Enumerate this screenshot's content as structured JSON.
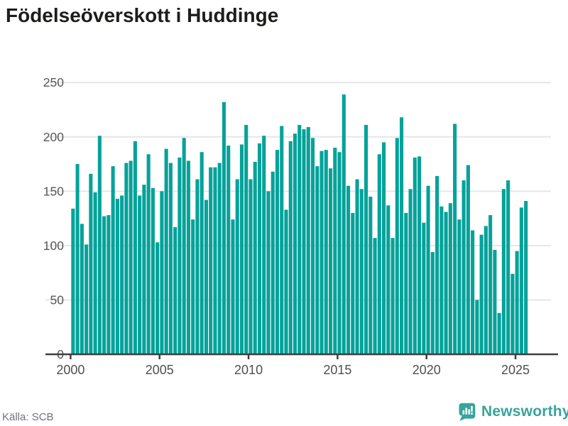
{
  "title": "Födelseöverskott i Huddinge",
  "source": "Källa: SCB",
  "logo": {
    "text": "Newsworthy"
  },
  "colors": {
    "bar": "#05a29a",
    "grid": "#e6e6e9",
    "axis": "#3f3f41",
    "y_label": "#58585a",
    "x_label": "#4f4f51",
    "title": "#1d1d1b",
    "source_text": "#6f737b",
    "logo_teal": "#38a49c"
  },
  "chart_data": {
    "type": "bar",
    "title": "Födelseöverskott i Huddinge",
    "xlabel": "",
    "ylabel": "",
    "frequency": "quarterly",
    "start": {
      "year": 2000,
      "quarter": 1
    },
    "count": 103,
    "series": [
      {
        "name": "Födelseöverskott",
        "values": [
          134,
          175,
          120,
          101,
          166,
          149,
          201,
          127,
          128,
          173,
          143,
          146,
          176,
          178,
          196,
          146,
          156,
          184,
          153,
          103,
          150,
          189,
          176,
          117,
          181,
          199,
          178,
          124,
          161,
          186,
          142,
          172,
          172,
          176,
          232,
          192,
          124,
          161,
          193,
          211,
          161,
          177,
          194,
          201,
          150,
          168,
          188,
          210,
          133,
          196,
          203,
          211,
          207,
          209,
          199,
          173,
          187,
          188,
          171,
          190,
          186,
          239,
          155,
          130,
          161,
          152,
          211,
          145,
          107,
          184,
          195,
          137,
          107,
          199,
          218,
          130,
          152,
          181,
          182,
          121,
          155,
          94,
          164,
          136,
          131,
          139,
          212,
          124,
          160,
          174,
          114,
          50,
          110,
          118,
          128,
          96,
          38,
          152,
          160,
          74,
          95,
          135,
          141
        ]
      }
    ],
    "x_tick_labels": [
      "2000",
      "2005",
      "2010",
      "2015",
      "2020",
      "2025"
    ],
    "y_tick_labels": [
      "0",
      "50",
      "100",
      "150",
      "200",
      "250"
    ],
    "y_ticks": [
      0,
      50,
      100,
      150,
      200,
      250
    ],
    "ylim": [
      0,
      250
    ],
    "grid": "horizontal",
    "legend": "none"
  }
}
